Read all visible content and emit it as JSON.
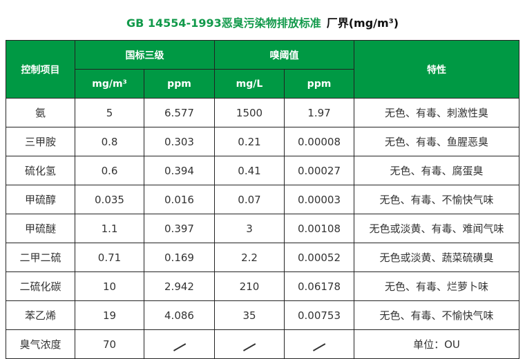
{
  "title": {
    "main": "GB 14554-1993恶臭污染物排放标准",
    "sub": "厂界(mg/m³)"
  },
  "header": {
    "control_item": "控制项目",
    "national_grade3": "国标三级",
    "odor_threshold": "嗅阈值",
    "properties": "特性",
    "units": [
      "mg/m³",
      "ppm",
      "mg/L",
      "ppm"
    ]
  },
  "rows": [
    {
      "item": "氨",
      "mg_m3": "5",
      "ppm": "6.577",
      "mg_l": "1500",
      "th_ppm": "1.97",
      "prop": "无色、有毒、刺激性臭"
    },
    {
      "item": "三甲胺",
      "mg_m3": "0.8",
      "ppm": "0.303",
      "mg_l": "0.21",
      "th_ppm": "0.00008",
      "prop": "无色、有毒、鱼腥恶臭"
    },
    {
      "item": "硫化氢",
      "mg_m3": "0.6",
      "ppm": "0.394",
      "mg_l": "0.41",
      "th_ppm": "0.00027",
      "prop": "无色、有毒、腐蛋臭"
    },
    {
      "item": "甲硫醇",
      "mg_m3": "0.035",
      "ppm": "0.016",
      "mg_l": "0.07",
      "th_ppm": "0.00003",
      "prop": "无色、有毒、不愉快气味"
    },
    {
      "item": "甲硫醚",
      "mg_m3": "1.1",
      "ppm": "0.397",
      "mg_l": "3",
      "th_ppm": "0.00108",
      "prop": "无色或淡黄、有毒、难闻气味"
    },
    {
      "item": "二甲二硫",
      "mg_m3": "0.71",
      "ppm": "0.169",
      "mg_l": "2.2",
      "th_ppm": "0.00052",
      "prop": "无色或淡黄、蔬菜硫磺臭"
    },
    {
      "item": "二硫化碳",
      "mg_m3": "10",
      "ppm": "2.942",
      "mg_l": "210",
      "th_ppm": "0.06178",
      "prop": "无色、有毒、烂萝卜味"
    },
    {
      "item": "苯乙烯",
      "mg_m3": "19",
      "ppm": "4.086",
      "mg_l": "35",
      "th_ppm": "0.00753",
      "prop": "无色、有毒、不愉快气味"
    }
  ],
  "last_row": {
    "item": "臭气浓度",
    "mg_m3": "70",
    "prop": "单位：OU"
  }
}
